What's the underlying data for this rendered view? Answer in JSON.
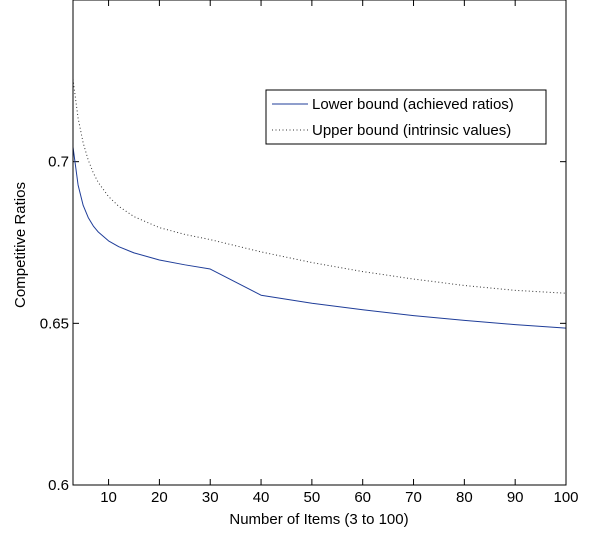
{
  "chart_data": {
    "type": "line",
    "title": "",
    "xlabel": "Number of Items (3 to 100)",
    "ylabel": "Competitive Ratios",
    "xlim": [
      3,
      100
    ],
    "ylim": [
      0.6,
      0.75
    ],
    "grid": false,
    "legend_position": "top-right",
    "x_ticks": [
      10,
      20,
      30,
      40,
      50,
      60,
      70,
      80,
      90,
      100
    ],
    "x_tick_labels": [
      "10",
      "20",
      "30",
      "40",
      "50",
      "60",
      "70",
      "80",
      "90",
      "100"
    ],
    "y_ticks": [
      0.6,
      0.65,
      0.7
    ],
    "y_tick_labels": [
      "0.6",
      "0.65",
      "0.7"
    ],
    "series": [
      {
        "name": "Lower bound (achieved ratios)",
        "color": "#1f3d99",
        "style": "solid",
        "x": [
          3,
          4,
          5,
          6,
          7,
          8,
          10,
          12,
          15,
          20,
          25,
          30,
          40,
          50,
          60,
          70,
          80,
          90,
          100
        ],
        "y": [
          0.7045,
          0.6928,
          0.6865,
          0.6827,
          0.6801,
          0.6782,
          0.6755,
          0.6737,
          0.6718,
          0.6696,
          0.6681,
          0.6668,
          0.6587,
          0.6562,
          0.6542,
          0.6524,
          0.6509,
          0.6496,
          0.6485
        ]
      },
      {
        "name": "Upper bound (intrinsic values)",
        "color": "#333333",
        "style": "dotted",
        "x": [
          3,
          4,
          5,
          6,
          7,
          8,
          10,
          12,
          15,
          20,
          25,
          30,
          40,
          50,
          60,
          70,
          80,
          90,
          100
        ],
        "y": [
          0.7255,
          0.7135,
          0.7058,
          0.7005,
          0.6965,
          0.6935,
          0.6892,
          0.6862,
          0.683,
          0.6796,
          0.6775,
          0.6759,
          0.6721,
          0.6688,
          0.666,
          0.6637,
          0.6617,
          0.6602,
          0.6593
        ]
      }
    ]
  }
}
